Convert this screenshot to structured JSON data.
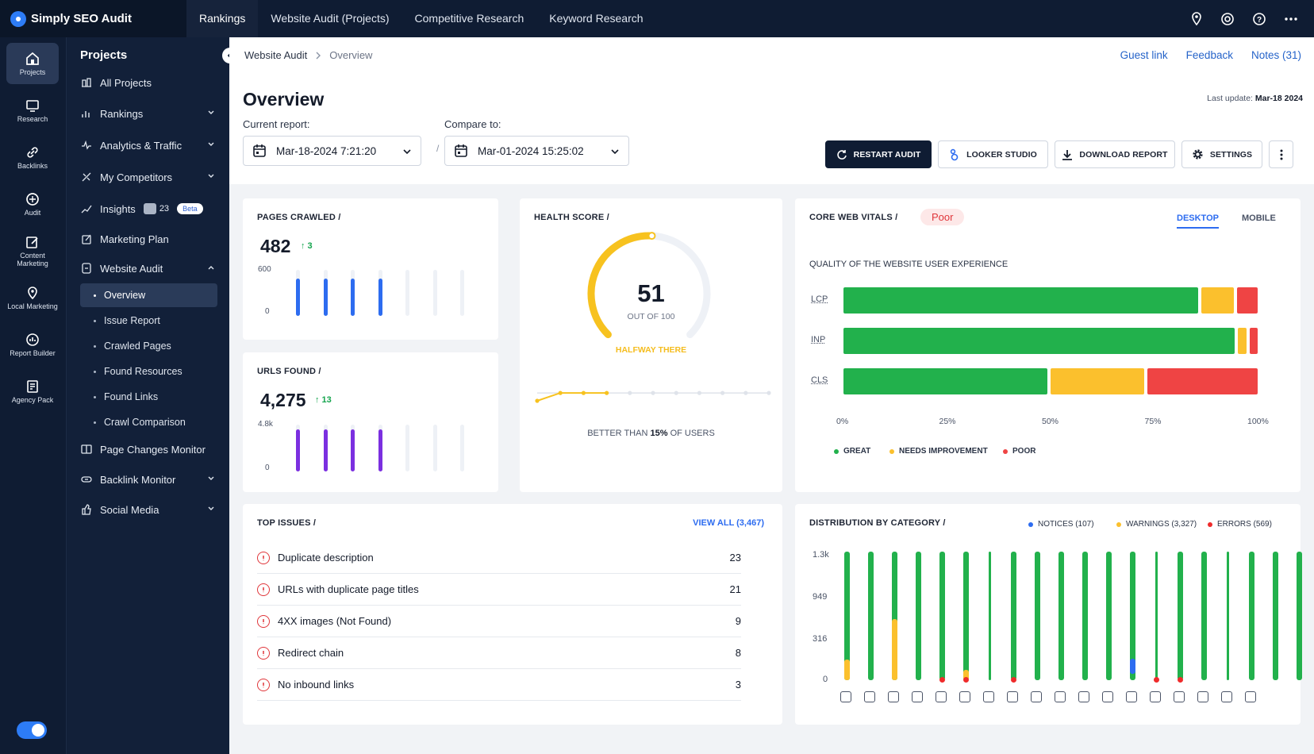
{
  "brand": "Simply SEO Audit",
  "topnav": [
    "Rankings",
    "Website Audit (Projects)",
    "Competitive Research",
    "Keyword Research"
  ],
  "rail": [
    {
      "label": "Projects",
      "icon": "home-icon"
    },
    {
      "label": "Research",
      "icon": "monitor-icon"
    },
    {
      "label": "Backlinks",
      "icon": "link-icon"
    },
    {
      "label": "Audit",
      "icon": "audit-icon"
    },
    {
      "label": "Content Marketing",
      "icon": "edit-icon"
    },
    {
      "label": "Local Marketing",
      "icon": "pin-icon"
    },
    {
      "label": "Report Builder",
      "icon": "report-icon"
    },
    {
      "label": "Agency Pack",
      "icon": "agency-icon"
    }
  ],
  "sidebar": {
    "title": "Projects",
    "items": [
      {
        "label": "All Projects"
      },
      {
        "label": "Rankings"
      },
      {
        "label": "Analytics & Traffic"
      },
      {
        "label": "My Competitors"
      },
      {
        "label": "Insights",
        "count": "23",
        "badge": "Beta"
      },
      {
        "label": "Marketing Plan"
      },
      {
        "label": "Website Audit"
      },
      {
        "label": "Page Changes Monitor"
      },
      {
        "label": "Backlink Monitor"
      },
      {
        "label": "Social Media"
      }
    ],
    "sub": [
      "Overview",
      "Issue Report",
      "Crawled Pages",
      "Found Resources",
      "Found Links",
      "Crawl Comparison"
    ]
  },
  "breadcrumb": {
    "parent": "Website Audit",
    "current": "Overview"
  },
  "links": {
    "guest": "Guest link",
    "feedback": "Feedback",
    "notes": "Notes (31)"
  },
  "page": {
    "title": "Overview",
    "last_update_label": "Last update:",
    "last_update": "Mar-18 2024"
  },
  "report": {
    "current_label": "Current report:",
    "current": "Mar-18-2024 7:21:20",
    "compare_label": "Compare to:",
    "compare": "Mar-01-2024 15:25:02",
    "sep": "/"
  },
  "buttons": {
    "restart": "RESTART AUDIT",
    "looker": "LOOKER STUDIO",
    "download": "DOWNLOAD REPORT",
    "settings": "SETTINGS"
  },
  "pages_crawled": {
    "title": "PAGES CRAWLED",
    "slash": "/",
    "value": "482",
    "delta": "↑ 3",
    "ymax": "600",
    "ymin": "0"
  },
  "urls_found": {
    "title": "URLS FOUND",
    "slash": "/",
    "value": "4,275",
    "delta": "↑ 13",
    "ymax": "4.8k",
    "ymin": "0"
  },
  "health": {
    "title": "HEALTH SCORE",
    "slash": "/",
    "score": "51",
    "out_of": "OUT OF 100",
    "status": "HALFWAY THERE",
    "better_pre": "BETTER THAN",
    "better_pct": "15%",
    "better_post": "OF USERS",
    "score_value": 51
  },
  "cwv": {
    "title": "CORE WEB VITALS",
    "slash": "/",
    "status": "Poor",
    "tab_desktop": "DESKTOP",
    "tab_mobile": "MOBILE",
    "subtitle": "QUALITY OF THE WEBSITE USER EXPERIENCE",
    "ticks": [
      "0%",
      "25%",
      "50%",
      "75%",
      "100%"
    ],
    "legend": {
      "great": "GREAT",
      "needs": "NEEDS IMPROVEMENT",
      "poor": "POOR"
    },
    "colors": {
      "great": "#22b14c",
      "needs": "#fbc02d",
      "poor": "#ef4444"
    }
  },
  "issues": {
    "title": "TOP ISSUES",
    "slash": "/",
    "view_all": "VIEW ALL (3,467)",
    "rows": [
      {
        "label": "Duplicate description",
        "count": "23"
      },
      {
        "label": "URLs with duplicate page titles",
        "count": "21"
      },
      {
        "label": "4XX images (Not Found)",
        "count": "9"
      },
      {
        "label": "Redirect chain",
        "count": "8"
      },
      {
        "label": "No inbound links",
        "count": "3"
      }
    ]
  },
  "distribution": {
    "title": "DISTRIBUTION BY CATEGORY",
    "slash": "/",
    "legend": {
      "notices": "NOTICES (107)",
      "warnings": "WARNINGS (3,327)",
      "errors": "ERRORS (569)"
    },
    "yticks": [
      "1.3k",
      "949",
      "316",
      "0"
    ],
    "colors": {
      "notices": "#2d6cf0",
      "warnings": "#fbc02d",
      "errors": "#ef2b2b",
      "ok": "#22b14c"
    }
  },
  "chart_data": [
    {
      "type": "bar",
      "title": "PAGES CRAWLED",
      "categories": [
        "1",
        "2",
        "3",
        "4",
        "5",
        "6",
        "7"
      ],
      "values": [
        482,
        482,
        482,
        482,
        0,
        0,
        0
      ],
      "ylim": [
        0,
        600
      ]
    },
    {
      "type": "bar",
      "title": "URLS FOUND",
      "categories": [
        "1",
        "2",
        "3",
        "4",
        "5",
        "6",
        "7"
      ],
      "values": [
        4275,
        4275,
        4275,
        4275,
        0,
        0,
        0
      ],
      "ylim": [
        0,
        4800
      ]
    },
    {
      "type": "line",
      "title": "HEALTH SCORE",
      "x": [
        1,
        2,
        3,
        4,
        5,
        6,
        7,
        8,
        9,
        10,
        11
      ],
      "values": [
        40,
        51,
        51,
        51,
        null,
        null,
        null,
        null,
        null,
        null,
        null
      ]
    },
    {
      "type": "bar",
      "title": "CORE WEB VITALS",
      "categories": [
        "LCP",
        "INP",
        "CLS"
      ],
      "series": [
        {
          "name": "GREAT",
          "values": [
            87,
            96,
            50
          ]
        },
        {
          "name": "NEEDS IMPROVEMENT",
          "values": [
            8,
            2,
            23
          ]
        },
        {
          "name": "POOR",
          "values": [
            5,
            2,
            27
          ]
        }
      ],
      "xlim": [
        0,
        100
      ]
    },
    {
      "type": "bar",
      "title": "DISTRIBUTION BY CATEGORY",
      "categories": [
        "1",
        "2",
        "3",
        "4",
        "5",
        "6",
        "7",
        "8",
        "9",
        "10",
        "11",
        "12",
        "13",
        "14",
        "15",
        "16",
        "17",
        "18",
        "19",
        "20",
        "21"
      ],
      "series": [
        {
          "name": "NOTICES",
          "values": [
            0,
            0,
            0,
            0,
            0,
            0,
            0,
            0,
            0,
            0,
            0,
            0,
            12,
            0,
            0,
            0,
            0,
            0,
            0,
            0,
            0
          ]
        },
        {
          "name": "WARNINGS",
          "values": [
            95,
            0,
            280,
            0,
            6,
            48,
            0,
            0,
            0,
            0,
            0,
            0,
            0,
            0,
            0,
            0,
            0,
            0,
            0,
            0,
            0
          ]
        },
        {
          "name": "ERRORS",
          "values": [
            0,
            0,
            0,
            0,
            8,
            8,
            0,
            9,
            0,
            0,
            0,
            0,
            0,
            6,
            7,
            0,
            0,
            0,
            0,
            0,
            0
          ]
        }
      ],
      "yticks": [
        0,
        316,
        949,
        1300
      ]
    }
  ]
}
